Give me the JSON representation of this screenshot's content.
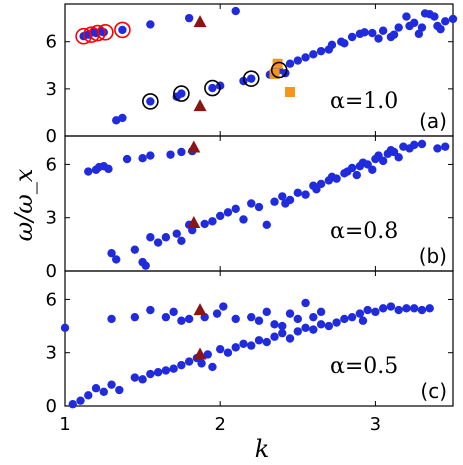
{
  "chart_data": [
    {
      "type": "scatter",
      "panel_tag": "(a)",
      "annotation": "α=1.0",
      "xlim": [
        1,
        3.5
      ],
      "ylim": [
        0,
        8.4
      ],
      "yticks": [
        0,
        3,
        6
      ],
      "series": [
        {
          "marker": "dot",
          "color": "#1f2bdc",
          "points": [
            [
              1.12,
              6.35
            ],
            [
              1.15,
              6.45
            ],
            [
              1.18,
              6.6
            ],
            [
              1.2,
              6.55
            ],
            [
              1.23,
              6.65
            ],
            [
              1.25,
              6.6
            ],
            [
              1.37,
              6.75
            ],
            [
              1.55,
              7.1
            ],
            [
              1.8,
              7.5
            ],
            [
              2.1,
              7.95
            ],
            [
              1.33,
              1.0
            ],
            [
              1.37,
              1.15
            ],
            [
              1.55,
              2.2
            ],
            [
              1.72,
              2.5
            ],
            [
              1.75,
              2.7
            ],
            [
              1.95,
              3.05
            ],
            [
              2.0,
              3.2
            ],
            [
              2.15,
              3.5
            ],
            [
              2.2,
              3.65
            ],
            [
              2.32,
              3.9
            ],
            [
              2.35,
              4.1
            ],
            [
              2.38,
              4.2
            ],
            [
              2.42,
              4.0
            ],
            [
              2.45,
              4.6
            ],
            [
              2.5,
              4.8
            ],
            [
              2.55,
              5.0
            ],
            [
              2.6,
              5.2
            ],
            [
              2.65,
              5.4
            ],
            [
              2.7,
              5.5
            ],
            [
              2.72,
              5.8
            ],
            [
              2.78,
              6.0
            ],
            [
              2.8,
              5.9
            ],
            [
              2.85,
              6.3
            ],
            [
              2.9,
              6.5
            ],
            [
              2.93,
              6.6
            ],
            [
              2.98,
              6.55
            ],
            [
              3.05,
              6.7
            ],
            [
              3.02,
              6.2
            ],
            [
              3.1,
              6.3
            ],
            [
              3.12,
              6.45
            ],
            [
              3.15,
              6.9
            ],
            [
              3.2,
              7.6
            ],
            [
              3.22,
              7.0
            ],
            [
              3.25,
              7.2
            ],
            [
              3.28,
              6.5
            ],
            [
              3.3,
              6.9
            ],
            [
              3.32,
              7.8
            ],
            [
              3.35,
              7.75
            ],
            [
              3.38,
              7.6
            ],
            [
              3.4,
              7.0
            ],
            [
              3.42,
              6.8
            ],
            [
              3.45,
              7.3
            ],
            [
              3.5,
              7.45
            ]
          ]
        },
        {
          "marker": "triangle",
          "color": "#8b1414",
          "points": [
            [
              1.87,
              7.25
            ],
            [
              1.87,
              1.9
            ]
          ]
        },
        {
          "marker": "square",
          "color": "#f7941d",
          "points": [
            [
              2.35,
              3.95
            ],
            [
              2.37,
              4.6
            ],
            [
              2.45,
              2.8
            ]
          ]
        },
        {
          "marker": "open-circle",
          "color": "#ff0000",
          "points": [
            [
              1.12,
              6.35
            ],
            [
              1.17,
              6.45
            ],
            [
              1.21,
              6.55
            ],
            [
              1.26,
              6.6
            ],
            [
              1.37,
              6.75
            ]
          ]
        },
        {
          "marker": "open-circle",
          "color": "#000000",
          "points": [
            [
              1.55,
              2.2
            ],
            [
              1.75,
              2.7
            ],
            [
              1.95,
              3.05
            ],
            [
              2.2,
              3.65
            ],
            [
              2.38,
              4.2
            ]
          ]
        }
      ]
    },
    {
      "type": "scatter",
      "panel_tag": "(b)",
      "annotation": "α=0.8",
      "xlim": [
        1,
        3.5
      ],
      "ylim": [
        0,
        7.6
      ],
      "yticks": [
        0,
        3,
        6
      ],
      "series": [
        {
          "marker": "dot",
          "color": "#1f2bdc",
          "points": [
            [
              1.15,
              5.6
            ],
            [
              1.2,
              5.7
            ],
            [
              1.22,
              5.85
            ],
            [
              1.25,
              5.9
            ],
            [
              1.28,
              5.75
            ],
            [
              1.4,
              6.3
            ],
            [
              1.5,
              6.35
            ],
            [
              1.55,
              6.5
            ],
            [
              1.68,
              6.55
            ],
            [
              1.75,
              6.7
            ],
            [
              1.82,
              6.75
            ],
            [
              1.3,
              1.0
            ],
            [
              1.33,
              0.65
            ],
            [
              1.45,
              1.2
            ],
            [
              1.5,
              0.5
            ],
            [
              1.52,
              0.3
            ],
            [
              1.55,
              1.9
            ],
            [
              1.6,
              1.6
            ],
            [
              1.65,
              1.9
            ],
            [
              1.72,
              2.1
            ],
            [
              1.75,
              1.7
            ],
            [
              1.8,
              2.6
            ],
            [
              1.82,
              2.3
            ],
            [
              1.9,
              2.65
            ],
            [
              1.95,
              2.8
            ],
            [
              2.0,
              3.1
            ],
            [
              2.05,
              3.3
            ],
            [
              2.1,
              3.5
            ],
            [
              2.15,
              2.9
            ],
            [
              2.2,
              3.8
            ],
            [
              2.25,
              3.6
            ],
            [
              2.3,
              2.6
            ],
            [
              2.35,
              3.9
            ],
            [
              2.4,
              4.2
            ],
            [
              2.42,
              3.8
            ],
            [
              2.45,
              4.0
            ],
            [
              2.5,
              4.4
            ],
            [
              2.55,
              4.3
            ],
            [
              2.6,
              4.8
            ],
            [
              2.62,
              4.6
            ],
            [
              2.65,
              4.9
            ],
            [
              2.7,
              5.1
            ],
            [
              2.72,
              5.3
            ],
            [
              2.75,
              5.2
            ],
            [
              2.8,
              5.5
            ],
            [
              2.82,
              5.6
            ],
            [
              2.85,
              5.8
            ],
            [
              2.88,
              5.4
            ],
            [
              2.9,
              5.9
            ],
            [
              2.92,
              6.1
            ],
            [
              2.95,
              6.0
            ],
            [
              2.98,
              5.7
            ],
            [
              3.0,
              6.3
            ],
            [
              3.02,
              6.5
            ],
            [
              3.05,
              6.2
            ],
            [
              3.08,
              6.6
            ],
            [
              3.1,
              6.8
            ],
            [
              3.12,
              6.7
            ],
            [
              3.15,
              6.4
            ],
            [
              3.18,
              7.0
            ],
            [
              3.22,
              6.9
            ],
            [
              3.25,
              7.1
            ],
            [
              3.3,
              7.15
            ],
            [
              3.4,
              6.9
            ],
            [
              3.45,
              7.0
            ]
          ]
        },
        {
          "marker": "triangle",
          "color": "#8b1414",
          "points": [
            [
              1.83,
              6.95
            ],
            [
              1.83,
              2.7
            ]
          ]
        }
      ]
    },
    {
      "type": "scatter",
      "panel_tag": "(c)",
      "annotation": "α=0.5",
      "xlim": [
        1,
        3.5
      ],
      "ylim": [
        0,
        7.6
      ],
      "yticks": [
        0,
        3,
        6
      ],
      "xticks": [
        1,
        2,
        3
      ],
      "xlabel": "k",
      "ylabel": "ω/ω_x",
      "series": [
        {
          "marker": "dot",
          "color": "#1f2bdc",
          "points": [
            [
              1.0,
              4.4
            ],
            [
              1.3,
              4.9
            ],
            [
              1.45,
              5.0
            ],
            [
              1.55,
              5.4
            ],
            [
              1.65,
              5.0
            ],
            [
              1.7,
              5.3
            ],
            [
              1.75,
              4.8
            ],
            [
              1.8,
              4.9
            ],
            [
              1.9,
              5.0
            ],
            [
              1.98,
              5.2
            ],
            [
              2.02,
              5.6
            ],
            [
              2.1,
              4.9
            ],
            [
              2.2,
              5.0
            ],
            [
              2.25,
              4.8
            ],
            [
              2.3,
              5.3
            ],
            [
              2.35,
              4.6
            ],
            [
              2.4,
              4.5
            ],
            [
              2.45,
              5.2
            ],
            [
              2.5,
              4.9
            ],
            [
              2.55,
              5.8
            ],
            [
              2.6,
              5.0
            ],
            [
              2.65,
              5.3
            ],
            [
              1.05,
              0.1
            ],
            [
              1.1,
              0.3
            ],
            [
              1.15,
              0.6
            ],
            [
              1.2,
              1.0
            ],
            [
              1.25,
              0.8
            ],
            [
              1.3,
              1.2
            ],
            [
              1.35,
              0.9
            ],
            [
              1.45,
              1.6
            ],
            [
              1.5,
              1.5
            ],
            [
              1.55,
              1.8
            ],
            [
              1.6,
              1.9
            ],
            [
              1.65,
              2.0
            ],
            [
              1.7,
              2.1
            ],
            [
              1.75,
              2.3
            ],
            [
              1.8,
              2.5
            ],
            [
              1.85,
              2.7
            ],
            [
              1.88,
              2.4
            ],
            [
              1.92,
              2.9
            ],
            [
              1.95,
              2.2
            ],
            [
              2.0,
              3.2
            ],
            [
              2.05,
              3.0
            ],
            [
              2.1,
              3.3
            ],
            [
              2.15,
              3.5
            ],
            [
              2.2,
              3.4
            ],
            [
              2.25,
              3.7
            ],
            [
              2.3,
              3.6
            ],
            [
              2.35,
              3.9
            ],
            [
              2.4,
              4.1
            ],
            [
              2.45,
              3.8
            ],
            [
              2.5,
              4.2
            ],
            [
              2.55,
              4.4
            ],
            [
              2.6,
              4.3
            ],
            [
              2.65,
              4.6
            ],
            [
              2.7,
              4.5
            ],
            [
              2.75,
              4.7
            ],
            [
              2.8,
              4.9
            ],
            [
              2.85,
              5.0
            ],
            [
              2.9,
              5.2
            ],
            [
              2.92,
              4.8
            ],
            [
              2.95,
              5.4
            ],
            [
              3.0,
              5.3
            ],
            [
              3.05,
              5.5
            ],
            [
              3.1,
              5.6
            ],
            [
              3.15,
              5.4
            ],
            [
              3.2,
              5.5
            ],
            [
              3.25,
              5.5
            ],
            [
              3.3,
              5.4
            ],
            [
              3.35,
              5.5
            ]
          ]
        },
        {
          "marker": "triangle",
          "color": "#8b1414",
          "points": [
            [
              1.87,
              5.4
            ],
            [
              1.87,
              2.9
            ]
          ]
        }
      ]
    }
  ]
}
